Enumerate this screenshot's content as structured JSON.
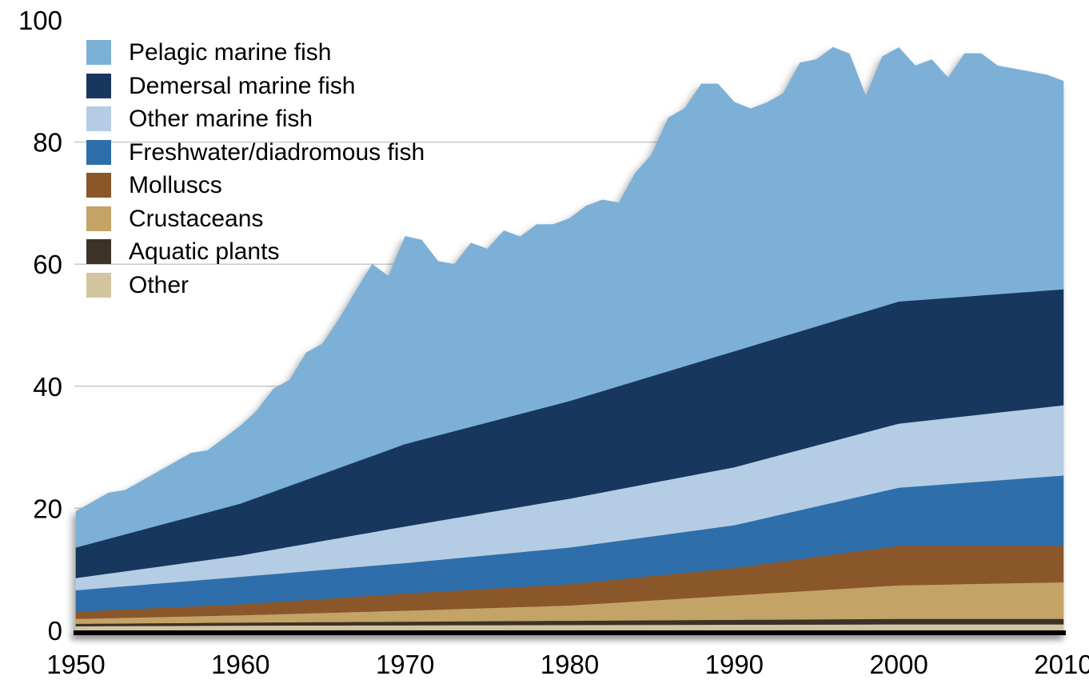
{
  "page": {
    "background": "#ffffff"
  },
  "chart_data": {
    "type": "area",
    "stacked": true,
    "title": "",
    "xlabel": "",
    "ylabel": "",
    "xlim": [
      1950,
      2010
    ],
    "ylim": [
      0,
      100
    ],
    "grid": "horizontal",
    "gridline_values": [
      20,
      40,
      60,
      80
    ],
    "legend_position": "top-left",
    "x_tick_labels": [
      "1950",
      "1960",
      "1970",
      "1980",
      "1990",
      "2000",
      "2010"
    ],
    "x_tick_values": [
      1950,
      1960,
      1970,
      1980,
      1990,
      2000,
      2010
    ],
    "y_tick_labels": [
      "0",
      "20",
      "40",
      "60",
      "80",
      "100"
    ],
    "y_tick_values": [
      0,
      20,
      40,
      60,
      80,
      100
    ],
    "years": [
      1950,
      1951,
      1952,
      1953,
      1954,
      1955,
      1956,
      1957,
      1958,
      1959,
      1960,
      1961,
      1962,
      1963,
      1964,
      1965,
      1966,
      1967,
      1968,
      1969,
      1970,
      1971,
      1972,
      1973,
      1974,
      1975,
      1976,
      1977,
      1978,
      1979,
      1980,
      1981,
      1982,
      1983,
      1984,
      1985,
      1986,
      1987,
      1988,
      1989,
      1990,
      1991,
      1992,
      1993,
      1994,
      1995,
      1996,
      1997,
      1998,
      1999,
      2000,
      2001,
      2002,
      2003,
      2004,
      2005,
      2006,
      2007,
      2008,
      2009,
      2010
    ],
    "stack_order_bottom_to_top": [
      "Other",
      "Aquatic plants",
      "Crustaceans",
      "Molluscs",
      "Freshwater/diadromous fish",
      "Other marine fish",
      "Demersal marine fish",
      "Pelagic marine fish"
    ],
    "series": [
      {
        "name": "Pelagic marine fish",
        "color": "#7cb0d7",
        "values": [
          5.9,
          6.7,
          7.5,
          7.2,
          8.0,
          8.8,
          9.6,
          10.4,
          10.1,
          11.4,
          12.7,
          14.2,
          16.8,
          17.3,
          20.8,
          21.3,
          24.4,
          27.9,
          31.4,
          28.4,
          34.0,
          32.7,
          28.5,
          27.3,
          30.1,
          28.4,
          30.7,
          29.0,
          30.3,
          29.6,
          29.9,
          31.1,
          31.3,
          30.0,
          34.1,
          36.3,
          41.5,
          42.2,
          45.4,
          44.6,
          40.8,
          38.9,
          39.1,
          39.8,
          44.0,
          43.7,
          44.9,
          43.0,
          35.2,
          40.9,
          41.6,
          38.4,
          39.2,
          36.0,
          39.8,
          39.6,
          37.4,
          36.7,
          36.0,
          35.3,
          34.1
        ]
      },
      {
        "name": "Demersal marine fish",
        "color": "#17375e",
        "values": [
          5.0,
          5.35,
          5.7,
          6.05,
          6.4,
          6.75,
          7.1,
          7.45,
          7.8,
          8.15,
          8.5,
          9.0,
          9.5,
          10.0,
          10.5,
          11.0,
          11.5,
          12.0,
          12.5,
          13.0,
          13.5,
          13.75,
          14.0,
          14.25,
          14.5,
          14.75,
          15.0,
          15.25,
          15.5,
          15.75,
          16.0,
          16.3,
          16.6,
          16.9,
          17.2,
          17.5,
          17.8,
          18.1,
          18.4,
          18.7,
          19.0,
          19.1,
          19.2,
          19.3,
          19.4,
          19.5,
          19.6,
          19.7,
          19.8,
          19.9,
          20.0,
          19.9,
          19.8,
          19.7,
          19.6,
          19.5,
          19.4,
          19.3,
          19.2,
          19.1,
          19.0
        ]
      },
      {
        "name": "Other marine fish",
        "color": "#b5cde4",
        "values": [
          2.0,
          2.15,
          2.3,
          2.45,
          2.6,
          2.75,
          2.9,
          3.05,
          3.2,
          3.35,
          3.5,
          3.75,
          4.0,
          4.25,
          4.5,
          4.75,
          5.0,
          5.25,
          5.5,
          5.75,
          6.0,
          6.2,
          6.4,
          6.6,
          6.8,
          7.0,
          7.2,
          7.4,
          7.6,
          7.8,
          8.0,
          8.15,
          8.3,
          8.45,
          8.6,
          8.75,
          8.9,
          9.05,
          9.2,
          9.35,
          9.5,
          9.6,
          9.7,
          9.8,
          9.9,
          10.0,
          10.1,
          10.2,
          10.3,
          10.4,
          10.5,
          10.6,
          10.7,
          10.8,
          10.9,
          11.0,
          11.1,
          11.2,
          11.3,
          11.4,
          11.5
        ]
      },
      {
        "name": "Freshwater/diadromous fish",
        "color": "#2e6fab",
        "values": [
          3.5,
          3.6,
          3.7,
          3.8,
          3.9,
          4.0,
          4.1,
          4.2,
          4.3,
          4.4,
          4.5,
          4.55,
          4.6,
          4.65,
          4.7,
          4.75,
          4.8,
          4.85,
          4.9,
          4.95,
          5.0,
          5.1,
          5.2,
          5.3,
          5.4,
          5.5,
          5.6,
          5.7,
          5.8,
          5.9,
          6.0,
          6.1,
          6.2,
          6.3,
          6.4,
          6.5,
          6.6,
          6.7,
          6.8,
          6.9,
          7.0,
          7.25,
          7.5,
          7.75,
          8.0,
          8.25,
          8.5,
          8.75,
          9.0,
          9.25,
          9.5,
          9.7,
          9.9,
          10.1,
          10.3,
          10.5,
          10.7,
          10.9,
          11.1,
          11.3,
          11.5
        ]
      },
      {
        "name": "Molluscs",
        "color": "#8a572a",
        "values": [
          1.2,
          1.26,
          1.32,
          1.38,
          1.44,
          1.5,
          1.56,
          1.62,
          1.68,
          1.74,
          1.8,
          1.9,
          2.0,
          2.1,
          2.2,
          2.3,
          2.4,
          2.5,
          2.6,
          2.7,
          2.8,
          2.87,
          2.94,
          3.01,
          3.08,
          3.15,
          3.22,
          3.29,
          3.36,
          3.43,
          3.5,
          3.6,
          3.7,
          3.8,
          3.9,
          4.0,
          4.1,
          4.2,
          4.3,
          4.4,
          4.5,
          4.7,
          4.9,
          5.1,
          5.3,
          5.5,
          5.7,
          5.9,
          6.1,
          6.3,
          6.5,
          6.45,
          6.4,
          6.35,
          6.3,
          6.25,
          6.2,
          6.15,
          6.1,
          6.05,
          6.0
        ]
      },
      {
        "name": "Crustaceans",
        "color": "#c3a366",
        "values": [
          0.8,
          0.84,
          0.88,
          0.92,
          0.96,
          1.0,
          1.04,
          1.08,
          1.12,
          1.16,
          1.2,
          1.26,
          1.32,
          1.38,
          1.44,
          1.5,
          1.56,
          1.62,
          1.68,
          1.74,
          1.8,
          1.87,
          1.94,
          2.01,
          2.08,
          2.15,
          2.22,
          2.29,
          2.36,
          2.43,
          2.5,
          2.65,
          2.8,
          2.95,
          3.1,
          3.25,
          3.4,
          3.55,
          3.7,
          3.85,
          4.0,
          4.15,
          4.3,
          4.45,
          4.6,
          4.75,
          4.9,
          5.05,
          5.2,
          5.35,
          5.5,
          5.55,
          5.6,
          5.65,
          5.7,
          5.75,
          5.8,
          5.85,
          5.9,
          5.95,
          6.0
        ]
      },
      {
        "name": "Aquatic plants",
        "color": "#3c3226",
        "values": [
          0.4,
          0.41,
          0.42,
          0.43,
          0.44,
          0.45,
          0.46,
          0.47,
          0.48,
          0.49,
          0.5,
          0.51,
          0.52,
          0.53,
          0.54,
          0.55,
          0.56,
          0.57,
          0.58,
          0.59,
          0.6,
          0.61,
          0.62,
          0.63,
          0.64,
          0.65,
          0.66,
          0.67,
          0.68,
          0.69,
          0.7,
          0.71,
          0.72,
          0.73,
          0.74,
          0.75,
          0.76,
          0.77,
          0.78,
          0.79,
          0.8,
          0.81,
          0.82,
          0.83,
          0.84,
          0.85,
          0.86,
          0.87,
          0.88,
          0.89,
          0.9,
          0.9,
          0.9,
          0.9,
          0.9,
          0.9,
          0.9,
          0.9,
          0.9,
          0.9,
          0.9
        ]
      },
      {
        "name": "Other",
        "color": "#d2c5a0",
        "values": [
          0.7,
          0.71,
          0.72,
          0.73,
          0.74,
          0.75,
          0.76,
          0.77,
          0.78,
          0.79,
          0.8,
          0.81,
          0.81,
          0.82,
          0.82,
          0.83,
          0.83,
          0.84,
          0.84,
          0.85,
          0.85,
          0.86,
          0.86,
          0.87,
          0.87,
          0.88,
          0.88,
          0.89,
          0.89,
          0.9,
          0.9,
          0.91,
          0.91,
          0.92,
          0.92,
          0.93,
          0.93,
          0.94,
          0.94,
          0.95,
          0.95,
          0.96,
          0.96,
          0.97,
          0.97,
          0.98,
          0.98,
          0.99,
          0.99,
          1.0,
          1.0,
          1.0,
          1.0,
          1.0,
          1.0,
          1.0,
          1.0,
          1.0,
          1.0,
          1.0,
          1.0
        ]
      }
    ]
  }
}
